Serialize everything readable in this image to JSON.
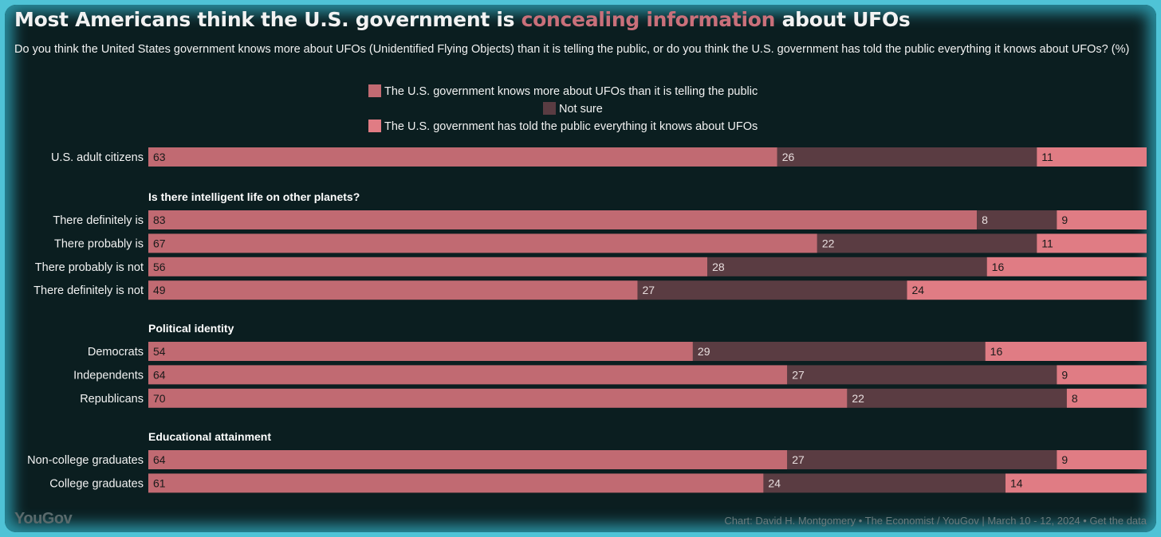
{
  "title": {
    "before": "Most Americans think the U.S. government is ",
    "highlight": "concealing information",
    "after": " about UFOs"
  },
  "subtitle": "Do you think the United States government knows more about UFOs (Unidentified Flying Objects) than it is telling the public, or do you think the U.S. government has told the public everything it knows about UFOs? (%)",
  "colors": {
    "more": "#c16a72",
    "not_sure": "#5a3c42",
    "told": "#e07c84",
    "background": "#0b1e20",
    "highlight": "#c9707a"
  },
  "footer": {
    "logo": "YouGov",
    "credit": "Chart: David H. Montgomery • The Economist / YouGov | March 10 - 12, 2024 • Get the data"
  },
  "chart_data": {
    "type": "bar",
    "stacked": true,
    "orientation": "horizontal",
    "legend_position": "top-center",
    "series": [
      {
        "name": "The U.S. government knows more about UFOs than it is telling the public"
      },
      {
        "name": "Not sure"
      },
      {
        "name": "The U.S. government has told the public everything it knows about UFOs"
      }
    ],
    "groups": [
      {
        "heading": "",
        "rows": [
          {
            "label": "U.S. adult citizens",
            "values": [
              63,
              26,
              11
            ]
          }
        ]
      },
      {
        "heading": "Is there intelligent life on other planets?",
        "rows": [
          {
            "label": "There definitely is",
            "values": [
              83,
              8,
              9
            ]
          },
          {
            "label": "There probably is",
            "values": [
              67,
              22,
              11
            ]
          },
          {
            "label": "There probably is not",
            "values": [
              56,
              28,
              16
            ]
          },
          {
            "label": "There definitely is not",
            "values": [
              49,
              27,
              24
            ]
          }
        ]
      },
      {
        "heading": "Political identity",
        "rows": [
          {
            "label": "Democrats",
            "values": [
              54,
              29,
              16
            ]
          },
          {
            "label": "Independents",
            "values": [
              64,
              27,
              9
            ]
          },
          {
            "label": "Republicans",
            "values": [
              70,
              22,
              8
            ]
          }
        ]
      },
      {
        "heading": "Educational attainment",
        "rows": [
          {
            "label": "Non-college graduates",
            "values": [
              64,
              27,
              9
            ]
          },
          {
            "label": "College graduates",
            "values": [
              61,
              24,
              14
            ]
          }
        ]
      }
    ]
  }
}
